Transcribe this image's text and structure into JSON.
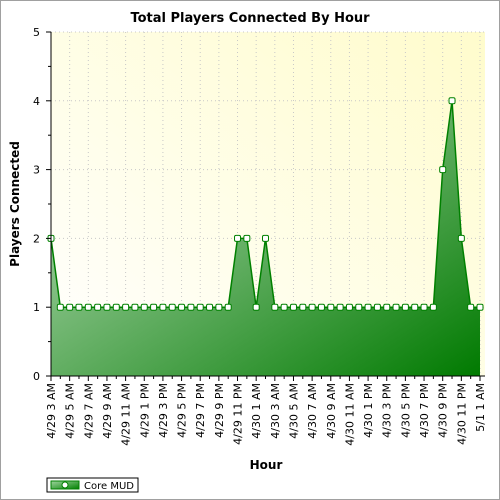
{
  "chart_data": {
    "type": "area",
    "title": "Total Players Connected By Hour",
    "xlabel": "Hour",
    "ylabel": "Players Connected",
    "ylim": [
      0,
      5
    ],
    "yticks": [
      0,
      1,
      2,
      3,
      4,
      5
    ],
    "x_tick_labels": [
      "4/29 3 AM",
      "4/29 5 AM",
      "4/29 7 AM",
      "4/29 9 AM",
      "4/29 11 AM",
      "4/29 1 PM",
      "4/29 3 PM",
      "4/29 5 PM",
      "4/29 7 PM",
      "4/29 9 PM",
      "4/29 11 PM",
      "4/30 1 AM",
      "4/30 3 AM",
      "4/30 5 AM",
      "4/30 7 AM",
      "4/30 9 AM",
      "4/30 11 AM",
      "4/30 1 PM",
      "4/30 3 PM",
      "4/30 5 PM",
      "4/30 7 PM",
      "4/30 9 PM",
      "4/30 11 PM",
      "5/1 1 AM"
    ],
    "grid": true,
    "legend_position": "bottom-left",
    "series": [
      {
        "name": "Core MUD",
        "color": "#008000",
        "values": [
          2,
          1,
          1,
          1,
          1,
          1,
          1,
          1,
          1,
          1,
          1,
          1,
          1,
          1,
          1,
          1,
          1,
          1,
          1,
          1,
          2,
          2,
          1,
          2,
          1,
          1,
          1,
          1,
          1,
          1,
          1,
          1,
          1,
          1,
          1,
          1,
          1,
          1,
          1,
          1,
          1,
          1,
          3,
          4,
          2,
          1,
          1
        ]
      }
    ]
  }
}
